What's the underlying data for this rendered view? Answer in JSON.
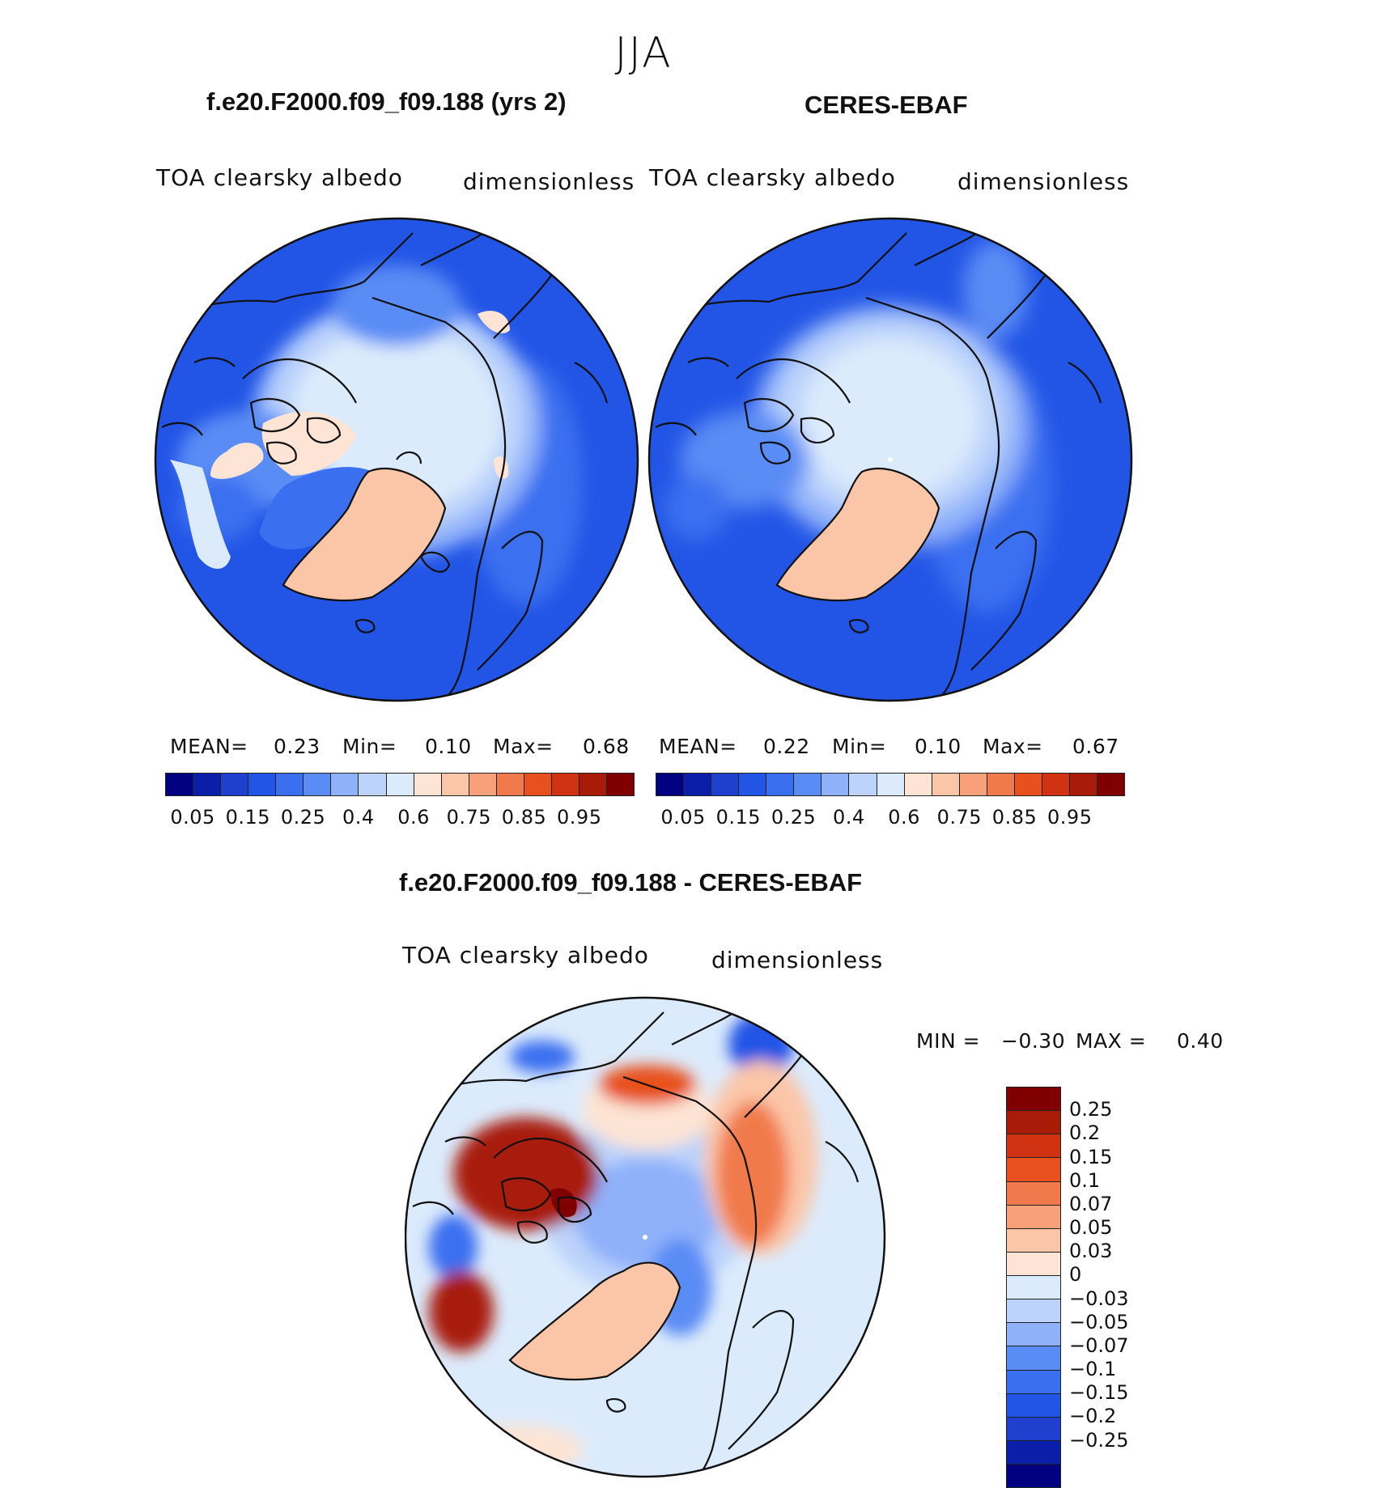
{
  "chart_data": [
    {
      "type": "heatmap",
      "season_title": "JJA",
      "title": "f.e20.F2000.f09_f09.188 (yrs 2)",
      "left_label": "TOA clearsky albedo",
      "right_label": "dimensionless",
      "projection": "north polar stereographic",
      "stats": {
        "mean_label": "MEAN=",
        "mean": "0.23",
        "min_label": "Min=",
        "min": "0.10",
        "max_label": "Max=",
        "max": "0.68"
      },
      "colorbar": {
        "orientation": "horizontal",
        "colors": [
          "#000080",
          "#0a1eaa",
          "#1f3fcf",
          "#2255e6",
          "#3a6ff0",
          "#5a8cf5",
          "#8fb1fa",
          "#bcd3fb",
          "#dcebfc",
          "#fde4d4",
          "#fbc6a8",
          "#f8a07a",
          "#f17a4c",
          "#e8511f",
          "#d03212",
          "#a81b08",
          "#800000"
        ],
        "tick_labels": [
          "0.05",
          "0.15",
          "0.25",
          "0.4",
          "0.6",
          "0.75",
          "0.85",
          "0.95"
        ]
      }
    },
    {
      "type": "heatmap",
      "title": "CERES-EBAF",
      "left_label": "TOA clearsky albedo",
      "right_label": "dimensionless",
      "projection": "north polar stereographic",
      "stats": {
        "mean_label": "MEAN=",
        "mean": "0.22",
        "min_label": "Min=",
        "min": "0.10",
        "max_label": "Max=",
        "max": "0.67"
      },
      "colorbar": {
        "orientation": "horizontal",
        "colors": [
          "#000080",
          "#0a1eaa",
          "#1f3fcf",
          "#2255e6",
          "#3a6ff0",
          "#5a8cf5",
          "#8fb1fa",
          "#bcd3fb",
          "#dcebfc",
          "#fde4d4",
          "#fbc6a8",
          "#f8a07a",
          "#f17a4c",
          "#e8511f",
          "#d03212",
          "#a81b08",
          "#800000"
        ],
        "tick_labels": [
          "0.05",
          "0.15",
          "0.25",
          "0.4",
          "0.6",
          "0.75",
          "0.85",
          "0.95"
        ]
      }
    },
    {
      "type": "heatmap",
      "title": "f.e20.F2000.f09_f09.188 - CERES-EBAF",
      "left_label": "TOA clearsky albedo",
      "right_label": "dimensionless",
      "projection": "north polar stereographic",
      "stats": {
        "min_label": "MIN =",
        "min": "−0.30",
        "max_label": "MAX =",
        "max": "0.40"
      },
      "colorbar": {
        "orientation": "vertical",
        "colors_top_to_bottom": [
          "#800000",
          "#a81b08",
          "#d03212",
          "#e8511f",
          "#f17a4c",
          "#f8a07a",
          "#fbc6a8",
          "#fde4d4",
          "#dcebfc",
          "#bcd3fb",
          "#8fb1fa",
          "#5a8cf5",
          "#3a6ff0",
          "#2255e6",
          "#1f3fcf",
          "#0a1eaa",
          "#000080"
        ],
        "tick_labels_top_to_bottom": [
          "0.25",
          "0.2",
          "0.15",
          "0.1",
          "0.07",
          "0.05",
          "0.03",
          "0",
          "−0.03",
          "−0.05",
          "−0.07",
          "−0.1",
          "−0.15",
          "−0.2",
          "−0.25"
        ]
      }
    }
  ]
}
